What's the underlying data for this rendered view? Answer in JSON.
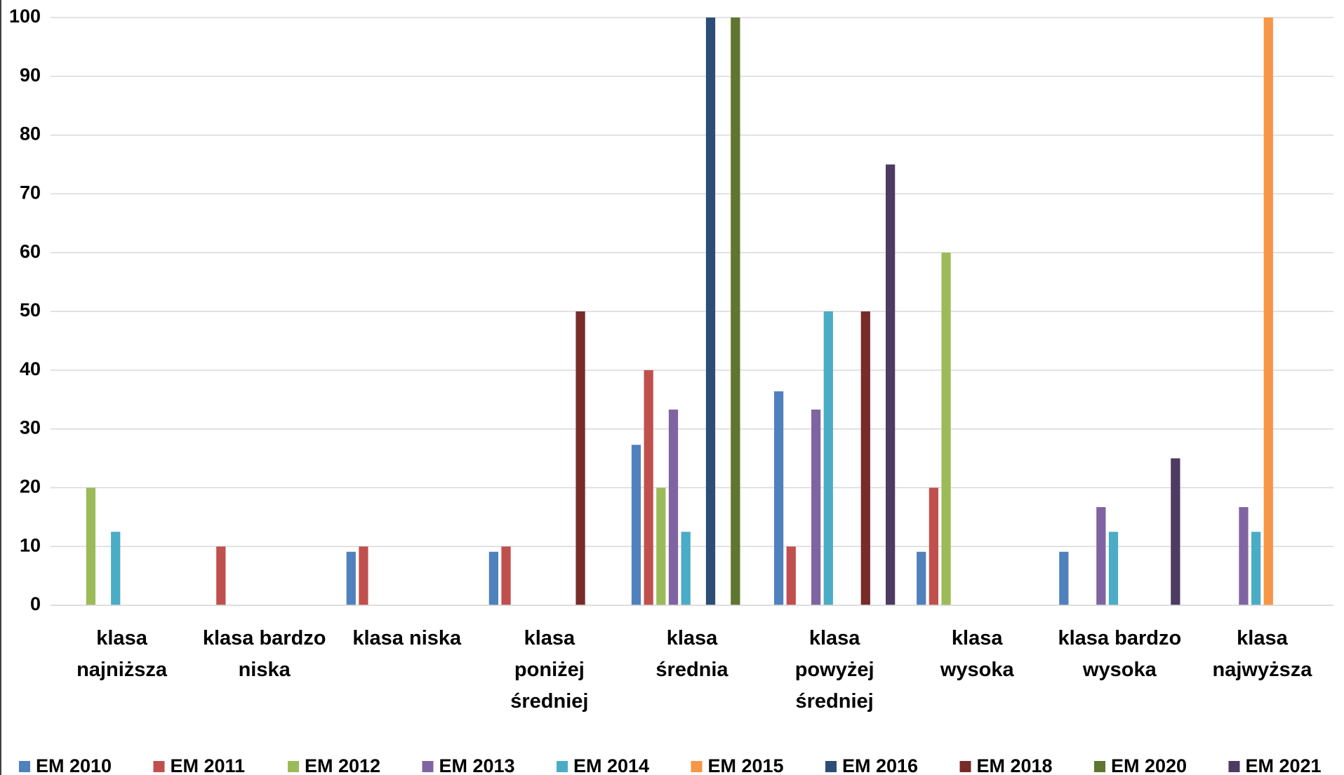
{
  "chart_data": {
    "type": "bar",
    "categories": [
      "klasa najniższa",
      "klasa bardzo niska",
      "klasa niska",
      "klasa poniżej średniej",
      "klasa średnia",
      "klasa powyżej średniej",
      "klasa wysoka",
      "klasa bardzo wysoka",
      "klasa najwyższa"
    ],
    "series": [
      {
        "name": "EM 2010",
        "color": "#4f81bd",
        "values": [
          null,
          null,
          9.1,
          9.1,
          27.3,
          36.4,
          9.1,
          9.1,
          null
        ]
      },
      {
        "name": "EM 2011",
        "color": "#c0504d",
        "values": [
          null,
          10,
          10,
          10,
          40,
          10,
          20,
          null,
          null
        ]
      },
      {
        "name": "EM 2012",
        "color": "#9bbb59",
        "values": [
          20,
          null,
          null,
          null,
          20,
          null,
          60,
          null,
          null
        ]
      },
      {
        "name": "EM 2013",
        "color": "#8064a2",
        "values": [
          null,
          null,
          null,
          null,
          33.3,
          33.3,
          null,
          16.7,
          16.7
        ]
      },
      {
        "name": "EM 2014",
        "color": "#4bacc6",
        "values": [
          12.5,
          null,
          null,
          null,
          12.5,
          50,
          null,
          12.5,
          12.5
        ]
      },
      {
        "name": "EM 2015",
        "color": "#f79646",
        "values": [
          null,
          null,
          null,
          null,
          null,
          null,
          null,
          null,
          100
        ]
      },
      {
        "name": "EM 2016",
        "color": "#2c4d75",
        "values": [
          null,
          null,
          null,
          null,
          100,
          null,
          null,
          null,
          null
        ]
      },
      {
        "name": "EM 2018",
        "color": "#772c2a",
        "values": [
          null,
          null,
          null,
          50,
          null,
          50,
          null,
          null,
          null
        ]
      },
      {
        "name": "EM 2020",
        "color": "#5f7530",
        "values": [
          null,
          null,
          null,
          null,
          100,
          null,
          null,
          null,
          null
        ]
      },
      {
        "name": "EM 2021",
        "color": "#4d3b62",
        "values": [
          null,
          null,
          null,
          null,
          null,
          75,
          null,
          25,
          null
        ]
      }
    ],
    "ylim": [
      0,
      100
    ],
    "yticks": [
      0,
      10,
      20,
      30,
      40,
      50,
      60,
      70,
      80,
      90,
      100
    ],
    "grid": true,
    "legend": "bottom"
  }
}
